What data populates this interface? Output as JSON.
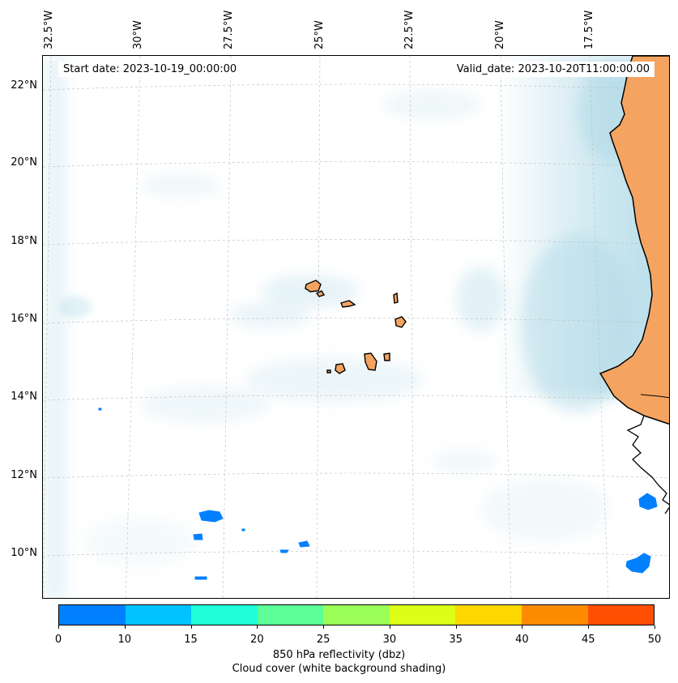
{
  "map": {
    "start_date": "Start date: 2023-10-19_00:00:00",
    "valid_date": "Valid_date: 2023-10-20T11:00:00.00",
    "longitude_labels": [
      "32.5°W",
      "30°W",
      "27.5°W",
      "25°W",
      "22.5°W",
      "20°W",
      "17.5°W"
    ],
    "latitude_labels": [
      "22°N",
      "20°N",
      "18°N",
      "16°N",
      "14°N",
      "12°N",
      "10°N"
    ],
    "land_color": "#f4a460",
    "cloud_color": "#add8e6"
  },
  "colorbar": {
    "ticks": [
      "0",
      "10",
      "15",
      "20",
      "25",
      "30",
      "35",
      "40",
      "45",
      "50"
    ],
    "colors": [
      "#0080ff",
      "#00c3ff",
      "#1effd9",
      "#5cff98",
      "#9cff57",
      "#dbff16",
      "#ffd700",
      "#ff8c00",
      "#ff4f00"
    ],
    "label_line1": "850 hPa reflectivity (dbz)",
    "label_line2": "Cloud cover (white background shading)"
  }
}
